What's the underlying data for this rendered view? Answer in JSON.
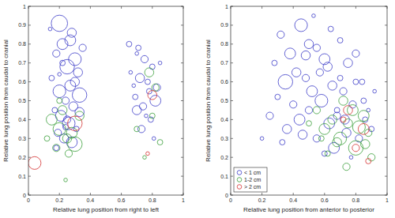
{
  "chart_data": [
    {
      "type": "scatter",
      "x_label": "Relative lung position from right to left",
      "y_label": "Relative lung position from caudal to cranial",
      "xlim": [
        0,
        1
      ],
      "ylim": [
        0,
        1
      ],
      "xticks": [
        0,
        0.2,
        0.4,
        0.6,
        0.8,
        1
      ],
      "yticks": [
        0,
        0.1,
        0.2,
        0.3,
        0.4,
        0.5,
        0.6,
        0.7,
        0.8,
        0.9,
        1
      ],
      "marker": "open-circle",
      "series": [
        {
          "color": "#3c3cc8",
          "x": [
            0.2,
            0.28,
            0.22,
            0.18,
            0.3,
            0.25,
            0.15,
            0.32,
            0.27,
            0.2,
            0.24,
            0.33,
            0.17,
            0.29,
            0.21,
            0.26,
            0.31,
            0.19,
            0.23,
            0.28,
            0.14,
            0.35,
            0.22,
            0.3,
            0.25,
            0.18,
            0.27,
            0.33,
            0.2,
            0.24,
            0.65,
            0.7,
            0.75,
            0.8,
            0.72,
            0.68,
            0.78,
            0.82,
            0.74,
            0.66,
            0.77,
            0.85,
            0.7,
            0.79,
            0.73,
            0.81,
            0.69,
            0.76,
            0.83,
            0.71
          ],
          "y": [
            0.91,
            0.86,
            0.8,
            0.75,
            0.72,
            0.68,
            0.62,
            0.65,
            0.58,
            0.55,
            0.5,
            0.53,
            0.45,
            0.47,
            0.42,
            0.38,
            0.35,
            0.33,
            0.3,
            0.28,
            0.88,
            0.78,
            0.7,
            0.6,
            0.4,
            0.25,
            0.82,
            0.44,
            0.64,
            0.36,
            0.8,
            0.75,
            0.72,
            0.68,
            0.62,
            0.58,
            0.55,
            0.5,
            0.47,
            0.65,
            0.6,
            0.7,
            0.45,
            0.4,
            0.35,
            0.3,
            0.52,
            0.42,
            0.57,
            0.78
          ],
          "sizes": [
            9,
            5,
            6,
            4,
            7,
            8,
            3,
            5,
            6,
            7,
            4,
            8,
            3,
            5,
            6,
            7,
            3,
            4,
            5,
            6,
            2,
            4,
            3,
            5,
            4,
            3,
            6,
            5,
            2,
            3,
            3,
            2,
            4,
            3,
            5,
            2,
            3,
            6,
            4,
            2,
            3,
            2,
            5,
            3,
            4,
            2,
            3,
            2,
            4,
            3
          ]
        },
        {
          "color": "#3a9e3a",
          "x": [
            0.15,
            0.2,
            0.25,
            0.3,
            0.18,
            0.22,
            0.28,
            0.12,
            0.26,
            0.33,
            0.2,
            0.24,
            0.78,
            0.82,
            0.7,
            0.8,
            0.75,
            0.85
          ],
          "y": [
            0.4,
            0.35,
            0.3,
            0.27,
            0.25,
            0.45,
            0.33,
            0.3,
            0.22,
            0.42,
            0.5,
            0.08,
            0.65,
            0.57,
            0.35,
            0.42,
            0.2,
            0.28
          ],
          "sizes": [
            6,
            7,
            5,
            8,
            4,
            5,
            6,
            3,
            4,
            5,
            3,
            2,
            5,
            4,
            3,
            3,
            2,
            3
          ]
        },
        {
          "color": "#d43030",
          "x": [
            0.04,
            0.3,
            0.8,
            0.77
          ],
          "y": [
            0.17,
            0.38,
            0.53,
            0.22
          ],
          "sizes": [
            7,
            8,
            5,
            2
          ]
        }
      ]
    },
    {
      "type": "scatter",
      "x_label": "Relative lung position from anterior to posterior",
      "y_label": "Relative lung position from caudal to cranial",
      "xlim": [
        0,
        1
      ],
      "ylim": [
        0,
        1
      ],
      "xticks": [
        0,
        0.2,
        0.4,
        0.6,
        0.8,
        1
      ],
      "yticks": [
        0,
        0.1,
        0.2,
        0.3,
        0.4,
        0.5,
        0.6,
        0.7,
        0.8,
        0.9,
        1
      ],
      "marker": "open-circle",
      "legend": "lower left",
      "series": [
        {
          "name": "< 1 cm",
          "color": "#3c3cc8",
          "x": [
            0.32,
            0.45,
            0.5,
            0.38,
            0.28,
            0.55,
            0.6,
            0.42,
            0.35,
            0.48,
            0.62,
            0.3,
            0.52,
            0.4,
            0.58,
            0.65,
            0.7,
            0.25,
            0.44,
            0.36,
            0.68,
            0.72,
            0.75,
            0.8,
            0.55,
            0.46,
            0.33,
            0.63,
            0.5,
            0.2,
            0.85,
            0.78,
            0.88,
            0.73,
            0.9,
            0.66,
            0.82,
            0.6,
            0.77,
            0.86,
            0.57,
            0.48,
            0.7,
            0.92,
            0.8,
            0.64,
            0.53,
            0.74,
            0.84,
            0.68
          ],
          "y": [
            0.85,
            0.9,
            0.8,
            0.75,
            0.7,
            0.78,
            0.72,
            0.65,
            0.6,
            0.62,
            0.68,
            0.52,
            0.55,
            0.48,
            0.5,
            0.58,
            0.62,
            0.42,
            0.4,
            0.35,
            0.45,
            0.55,
            0.7,
            0.6,
            0.3,
            0.32,
            0.28,
            0.38,
            0.45,
            0.3,
            0.5,
            0.48,
            0.45,
            0.4,
            0.35,
            0.25,
            0.3,
            0.22,
            0.2,
            0.4,
            0.65,
            0.74,
            0.82,
            0.55,
            0.75,
            0.88,
            0.95,
            0.33,
            0.6,
            0.42
          ],
          "sizes": [
            4,
            7,
            5,
            6,
            3,
            4,
            6,
            5,
            8,
            4,
            5,
            3,
            6,
            4,
            7,
            5,
            3,
            4,
            6,
            5,
            3,
            4,
            5,
            3,
            4,
            5,
            3,
            6,
            4,
            2,
            3,
            4,
            2,
            5,
            3,
            6,
            4,
            3,
            2,
            3,
            4,
            5,
            3,
            2,
            4,
            3,
            2,
            5,
            3,
            4
          ]
        },
        {
          "name": "1-2 cm",
          "color": "#3a9e3a",
          "x": [
            0.55,
            0.6,
            0.65,
            0.7,
            0.75,
            0.8,
            0.85,
            0.88,
            0.62,
            0.72,
            0.78,
            0.9,
            0.68,
            0.82,
            0.58,
            0.74,
            0.86,
            0.5
          ],
          "y": [
            0.45,
            0.35,
            0.4,
            0.3,
            0.38,
            0.25,
            0.42,
            0.33,
            0.22,
            0.5,
            0.45,
            0.2,
            0.28,
            0.36,
            0.3,
            0.15,
            0.27,
            0.38
          ],
          "sizes": [
            4,
            6,
            5,
            7,
            5,
            8,
            6,
            4,
            3,
            5,
            6,
            4,
            5,
            7,
            3,
            4,
            5,
            3
          ]
        },
        {
          "name": "> 2 cm",
          "color": "#d43030",
          "x": [
            0.75,
            0.85,
            0.88,
            0.8,
            0.72
          ],
          "y": [
            0.45,
            0.35,
            0.18,
            0.25,
            0.4
          ],
          "sizes": [
            5,
            6,
            3,
            4,
            3
          ]
        }
      ]
    }
  ]
}
